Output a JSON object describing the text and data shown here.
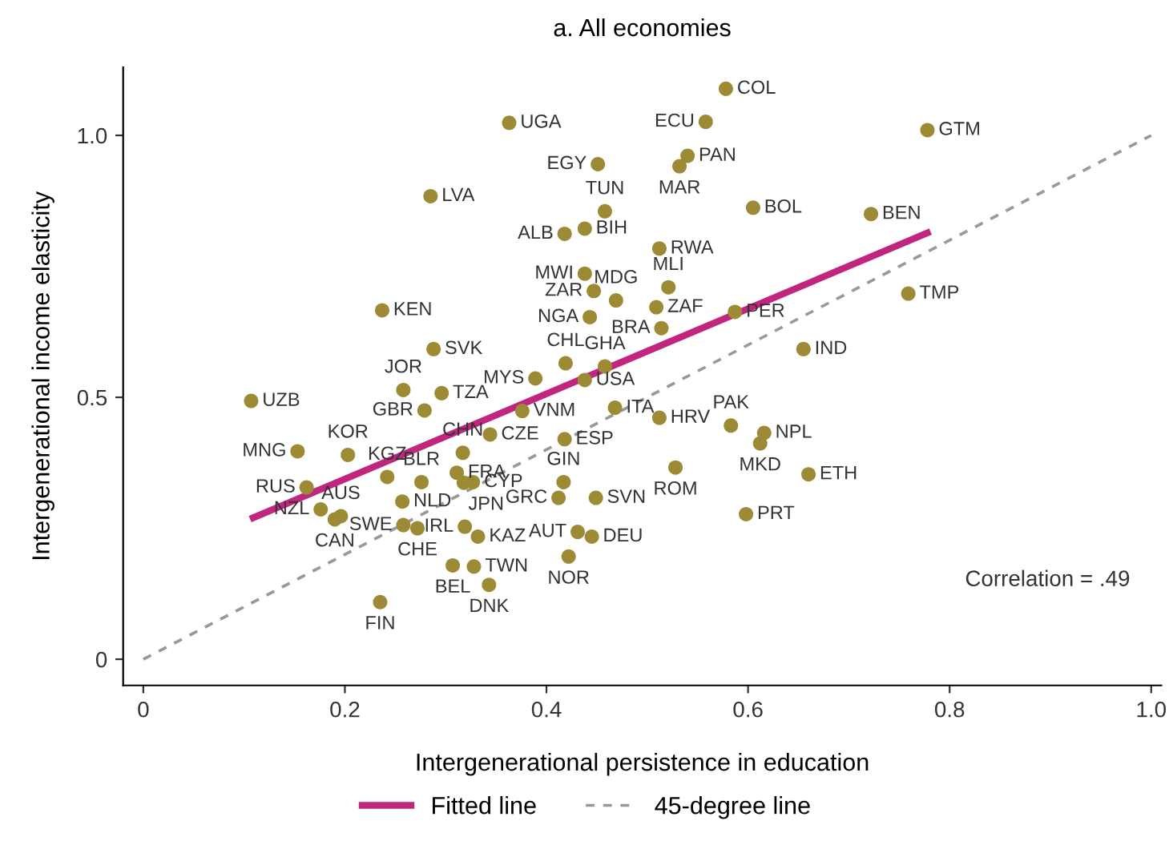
{
  "chart_data": {
    "type": "scatter",
    "title": "a. All economies",
    "xlabel": "Intergenerational persistence in education",
    "ylabel": "Intergenerational income elasticity",
    "xlim": [
      -0.02,
      1.01
    ],
    "ylim": [
      -0.05,
      1.13
    ],
    "xticks": [
      0,
      0.2,
      0.4,
      0.6,
      0.8,
      {
        "value": 1,
        "label": "1.0"
      }
    ],
    "yticks": [
      0,
      0.5,
      {
        "value": 1,
        "label": "1.0"
      }
    ],
    "grid": false,
    "legend": "bottom",
    "marker": "circle",
    "annotations": [
      "Correlation = .49"
    ],
    "series": [
      {
        "color": "#9c8a35",
        "value_labels": [
          "UGA",
          "EGY",
          "LVA",
          "TUN",
          "ALB",
          "BIH",
          "MWI",
          "ZAR",
          "MDG",
          "KEN",
          "NGA",
          "SVK",
          "CHL",
          "GHA",
          "MYS",
          "USA",
          "JOR",
          "TZA",
          "UZB",
          "GBR",
          "VNM",
          "ITA",
          "CHN",
          "CZE",
          "ESP",
          "MNG",
          "KOR",
          "KGZ",
          "BLR",
          "FRA",
          "JPN",
          "CYP",
          "NLD",
          "RUS",
          "NZL",
          "AUS",
          "CAN",
          "SWE",
          "CHE",
          "IRL",
          "KAZ",
          "BEL",
          "TWN",
          "DNK",
          "FIN",
          "GIN",
          "GRC",
          "SVN",
          "AUT",
          "DEU",
          "NOR",
          "COL",
          "ECU",
          "GTM",
          "PAN",
          "MAR",
          "BOL",
          "BEN",
          "RWA",
          "MLI",
          "ZAF",
          "BRA",
          "PER",
          "TMP",
          "IND",
          "HRV",
          "PAK",
          "NPL",
          "MKD",
          "ROM",
          "ETH",
          "PRT"
        ],
        "x": [
          0.363,
          0.451,
          0.285,
          0.458,
          0.418,
          0.438,
          0.438,
          0.447,
          0.469,
          0.237,
          0.443,
          0.288,
          0.419,
          0.458,
          0.389,
          0.438,
          0.258,
          0.296,
          0.107,
          0.279,
          0.376,
          0.468,
          0.317,
          0.344,
          0.418,
          0.153,
          0.203,
          0.242,
          0.276,
          0.311,
          0.318,
          0.327,
          0.257,
          0.162,
          0.176,
          0.196,
          0.19,
          0.258,
          0.272,
          0.319,
          0.332,
          0.307,
          0.328,
          0.343,
          0.235,
          0.417,
          0.412,
          0.449,
          0.431,
          0.445,
          0.422,
          0.578,
          0.558,
          0.778,
          0.54,
          0.532,
          0.605,
          0.722,
          0.512,
          0.521,
          0.509,
          0.514,
          0.587,
          0.759,
          0.655,
          0.512,
          0.583,
          0.616,
          0.612,
          0.528,
          0.66,
          0.598
        ],
        "values": [
          1.024,
          0.945,
          0.884,
          0.855,
          0.812,
          0.822,
          0.736,
          0.703,
          0.685,
          0.666,
          0.653,
          0.592,
          0.565,
          0.559,
          0.536,
          0.533,
          0.514,
          0.508,
          0.493,
          0.475,
          0.474,
          0.48,
          0.394,
          0.429,
          0.42,
          0.397,
          0.39,
          0.348,
          0.338,
          0.356,
          0.337,
          0.338,
          0.301,
          0.328,
          0.286,
          0.273,
          0.267,
          0.256,
          0.25,
          0.253,
          0.234,
          0.179,
          0.177,
          0.142,
          0.109,
          0.338,
          0.308,
          0.308,
          0.243,
          0.234,
          0.196,
          1.089,
          1.026,
          1.01,
          0.961,
          0.941,
          0.862,
          0.85,
          0.784,
          0.71,
          0.672,
          0.632,
          0.663,
          0.698,
          0.592,
          0.461,
          0.446,
          0.432,
          0.412,
          0.366,
          0.353,
          0.277
        ]
      },
      {
        "type": "line",
        "name": "Fitted line",
        "color": "#c0267e",
        "x": [
          0.109,
          0.778
        ],
        "values": [
          0.27,
          0.814
        ],
        "line_style": "solid",
        "marker": "none"
      },
      {
        "type": "line",
        "name": "45-degree line",
        "color": "#999999",
        "x": [
          0,
          1.0
        ],
        "values": [
          0,
          1.0
        ],
        "line_style": "dashed",
        "marker": "none"
      }
    ]
  }
}
